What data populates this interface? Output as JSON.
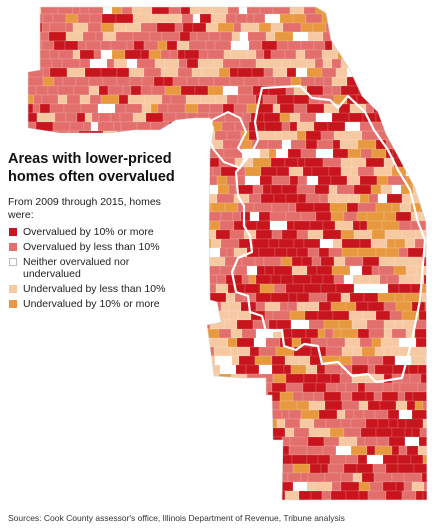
{
  "title_line1": "Areas with lower-priced",
  "title_line2": "homes often overvalued",
  "subtitle_line1": "From 2009 through 2015, homes",
  "subtitle_line2": "were:",
  "legend": [
    {
      "line1": "Overvalued by 10% or more",
      "line2": "",
      "color": "#c8151d"
    },
    {
      "line1": "Overvalued by less than 10%",
      "line2": "",
      "color": "#e36f6c"
    },
    {
      "line1": "Neither overvalued nor",
      "line2": "undervalued",
      "color": "#ffffff"
    },
    {
      "line1": "Undervalued by less than 10%",
      "line2": "",
      "color": "#f7c9a3"
    },
    {
      "line1": "Undervalued by 10% or more",
      "line2": "",
      "color": "#e8993f"
    }
  ],
  "source": "Sources: Cook County assessor's office, Illinois Department of Revenue, Tribune analysis",
  "colors": {
    "overvalued_10_plus": "#c8151d",
    "overvalued_under_10": "#e36f6c",
    "neutral": "#ffffff",
    "undervalued_under_10": "#f7c9a3",
    "undervalued_10_plus": "#e8993f",
    "city_boundary": "#ffffff"
  }
}
